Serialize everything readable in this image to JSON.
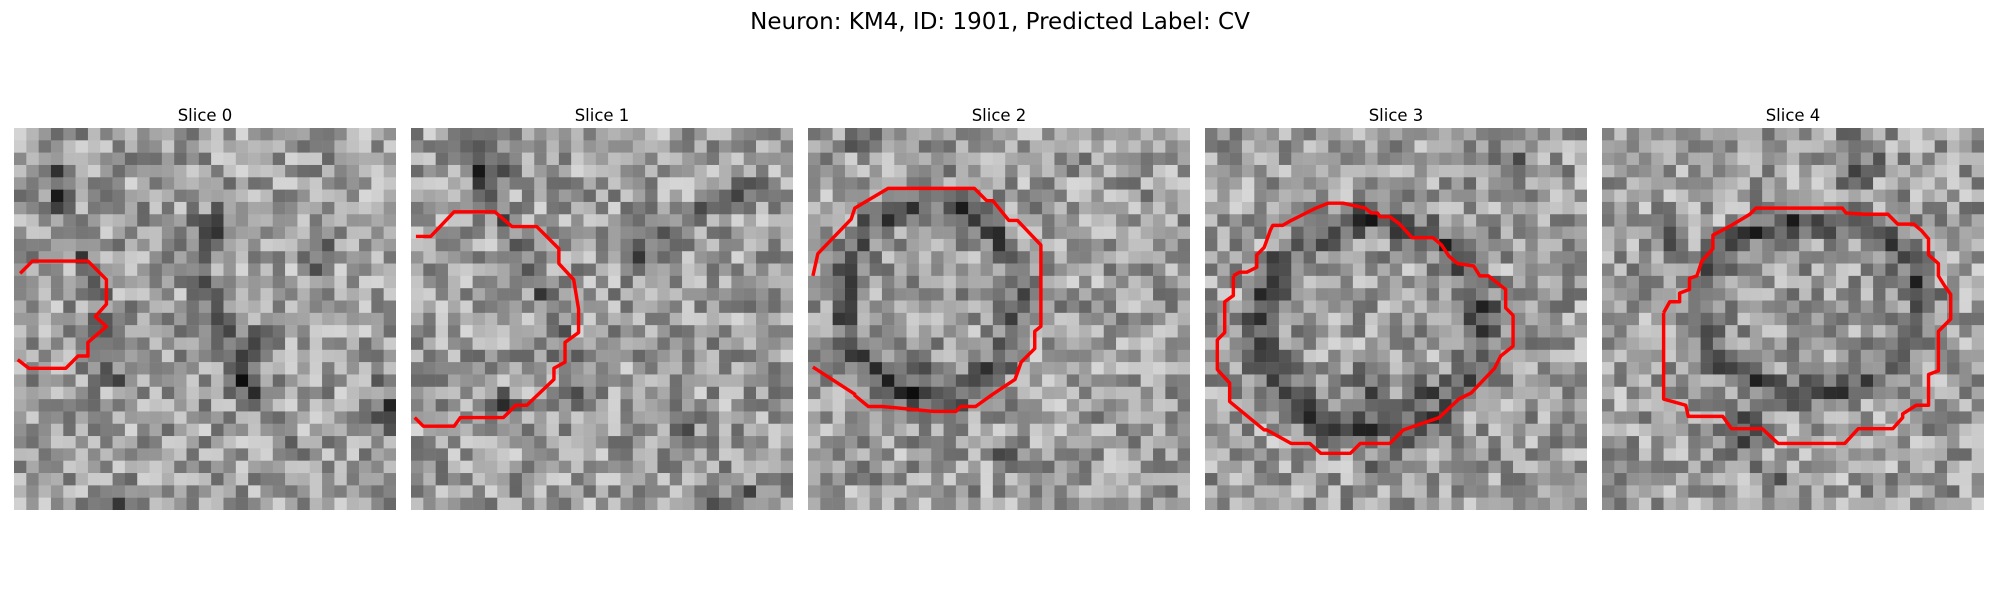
{
  "figure": {
    "title": "Neuron: KM4, ID: 1901, Predicted Label: CV"
  },
  "panels": [
    {
      "title": "Slice 0"
    },
    {
      "title": "Slice 1"
    },
    {
      "title": "Slice 2"
    },
    {
      "title": "Slice 3"
    },
    {
      "title": "Slice 4"
    }
  ],
  "colors": {
    "contour": "#ff0000",
    "background": "#ffffff"
  }
}
